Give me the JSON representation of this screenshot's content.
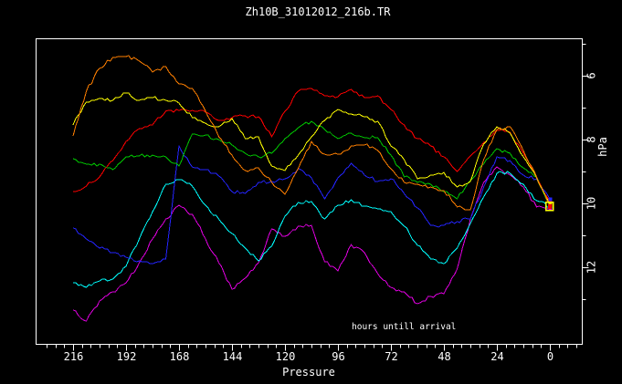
{
  "chart_data": {
    "type": "line",
    "title": "Zh10B_31012012_216b.TR",
    "xlabel": "Pressure",
    "ylabel": "hPa",
    "annotation": "hours untill arrival",
    "background_color": "#000000",
    "foreground_color": "#ffffff",
    "grid": false,
    "legend": "none",
    "x_axis_reversed": true,
    "y_axis_inverted": true,
    "x_range": [
      232,
      -15
    ],
    "y_range": [
      4.8,
      14.4
    ],
    "x_ticks": [
      216,
      192,
      168,
      144,
      120,
      96,
      72,
      48,
      24,
      0
    ],
    "x_minor_tick_step": 4,
    "y_ticks": [
      6,
      8,
      10,
      12
    ],
    "y_minor_ticks": [
      5,
      7,
      9,
      11,
      13
    ],
    "x": [
      216,
      210,
      204,
      198,
      192,
      186,
      180,
      174,
      168,
      162,
      156,
      150,
      144,
      138,
      132,
      126,
      120,
      114,
      108,
      102,
      96,
      90,
      84,
      78,
      72,
      66,
      60,
      54,
      48,
      42,
      36,
      30,
      24,
      18,
      12,
      6,
      0
    ],
    "series": [
      {
        "name": "magenta-trace",
        "color": "#e000e0",
        "values": [
          13.34,
          13.69,
          13.06,
          12.77,
          12.49,
          11.86,
          11.11,
          10.49,
          10.06,
          10.34,
          11.11,
          11.86,
          12.69,
          12.34,
          11.86,
          10.8,
          11.03,
          10.71,
          10.69,
          11.83,
          12.11,
          11.29,
          11.54,
          12.2,
          12.63,
          12.77,
          13.14,
          12.91,
          12.83,
          12.06,
          10.49,
          9.34,
          8.86,
          9.11,
          9.49,
          10.11,
          10.14
        ]
      },
      {
        "name": "cyan-trace",
        "color": "#00ffff",
        "values": [
          12.49,
          12.63,
          12.43,
          12.37,
          11.97,
          11.11,
          10.26,
          9.4,
          9.26,
          9.46,
          10.06,
          10.49,
          10.94,
          11.4,
          11.8,
          11.34,
          10.4,
          9.97,
          9.94,
          10.49,
          10.06,
          9.89,
          10.09,
          10.17,
          10.26,
          10.71,
          11.31,
          11.74,
          11.89,
          11.4,
          10.63,
          9.8,
          9.06,
          9.06,
          9.4,
          9.91,
          10.09
        ]
      },
      {
        "name": "blue-trace",
        "color": "#2424ff",
        "values": [
          10.77,
          11.11,
          11.4,
          11.54,
          11.69,
          11.8,
          11.89,
          11.74,
          8.2,
          8.86,
          8.94,
          9.14,
          9.63,
          9.69,
          9.34,
          9.31,
          9.23,
          8.91,
          9.2,
          9.86,
          9.2,
          8.74,
          9.11,
          9.31,
          9.23,
          9.69,
          10.14,
          10.69,
          10.69,
          10.57,
          10.49,
          9.49,
          8.54,
          8.66,
          9.11,
          9.23,
          9.86
        ]
      },
      {
        "name": "green-trace",
        "color": "#00c800",
        "values": [
          8.6,
          8.77,
          8.77,
          8.94,
          8.54,
          8.51,
          8.49,
          8.54,
          8.83,
          7.83,
          7.86,
          8.0,
          8.17,
          8.43,
          8.54,
          8.43,
          7.97,
          7.63,
          7.43,
          7.69,
          7.97,
          7.8,
          7.94,
          7.94,
          8.49,
          9.17,
          9.34,
          9.4,
          9.63,
          9.86,
          9.29,
          8.77,
          8.29,
          8.43,
          8.89,
          9.17,
          10.06
        ]
      },
      {
        "name": "red-trace",
        "color": "#ff0000",
        "values": [
          9.63,
          9.46,
          9.17,
          8.66,
          8.06,
          7.66,
          7.54,
          7.11,
          7.09,
          7.09,
          7.14,
          7.4,
          7.31,
          7.26,
          7.29,
          7.91,
          7.11,
          6.49,
          6.4,
          6.63,
          6.66,
          6.43,
          6.69,
          6.63,
          7.06,
          7.54,
          7.97,
          8.2,
          8.54,
          9.0,
          8.51,
          8.09,
          7.71,
          7.77,
          8.43,
          9.2,
          9.97
        ]
      },
      {
        "name": "yellow-trace",
        "color": "#ffff00",
        "values": [
          7.54,
          6.83,
          6.71,
          6.77,
          6.54,
          6.77,
          6.69,
          6.77,
          6.86,
          7.31,
          7.49,
          7.6,
          7.34,
          7.97,
          7.91,
          8.83,
          8.97,
          8.49,
          7.91,
          7.4,
          7.06,
          7.2,
          7.29,
          7.43,
          8.2,
          8.63,
          9.23,
          9.11,
          9.03,
          9.49,
          9.31,
          8.14,
          7.6,
          7.8,
          8.54,
          9.2,
          10.03
        ]
      },
      {
        "name": "orange-trace",
        "color": "#ff7f00",
        "values": [
          7.89,
          6.49,
          5.77,
          5.43,
          5.4,
          5.54,
          5.89,
          5.71,
          6.26,
          6.4,
          7.11,
          7.91,
          8.49,
          8.97,
          8.89,
          9.34,
          9.71,
          8.91,
          8.06,
          8.46,
          8.46,
          8.2,
          8.17,
          8.34,
          8.91,
          9.34,
          9.4,
          9.49,
          9.6,
          10.11,
          10.2,
          8.63,
          7.69,
          7.6,
          8.34,
          9.17,
          10.06
        ]
      }
    ],
    "end_marker": {
      "shape": "small-box-cluster",
      "outline_color": "#ffff00",
      "fill_color": "#ff0000",
      "at_hours": 0,
      "at_hpa": 10.1
    }
  }
}
